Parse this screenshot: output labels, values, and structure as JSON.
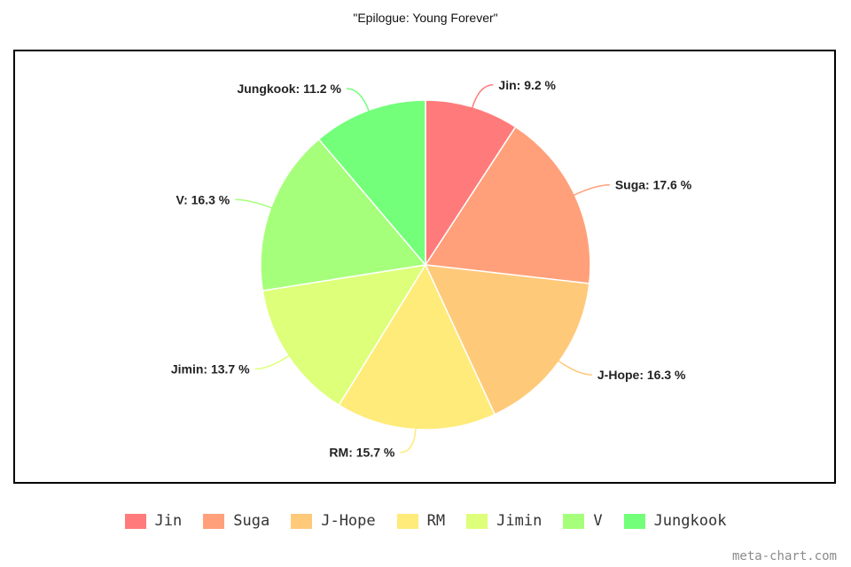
{
  "chart_data": {
    "type": "pie",
    "title": "\"Epilogue: Young Forever\"",
    "categories": [
      "Jin",
      "Suga",
      "J-Hope",
      "RM",
      "Jimin",
      "V",
      "Jungkook"
    ],
    "values": [
      9.2,
      17.6,
      16.3,
      15.7,
      13.7,
      16.3,
      11.2
    ],
    "unit": "%",
    "slice_labels": [
      "Jin: 9.2 %",
      "Suga: 17.6 %",
      "J-Hope: 16.3 %",
      "RM: 15.7 %",
      "Jimin: 13.7 %",
      "V: 16.3 %",
      "Jungkook: 11.2 %"
    ],
    "colors": [
      "#ff7b7b",
      "#ffa07a",
      "#ffc97a",
      "#ffeb7a",
      "#ddff7a",
      "#a6ff7a",
      "#73ff7a"
    ],
    "legend_position": "bottom"
  },
  "watermark": "meta-chart.com"
}
